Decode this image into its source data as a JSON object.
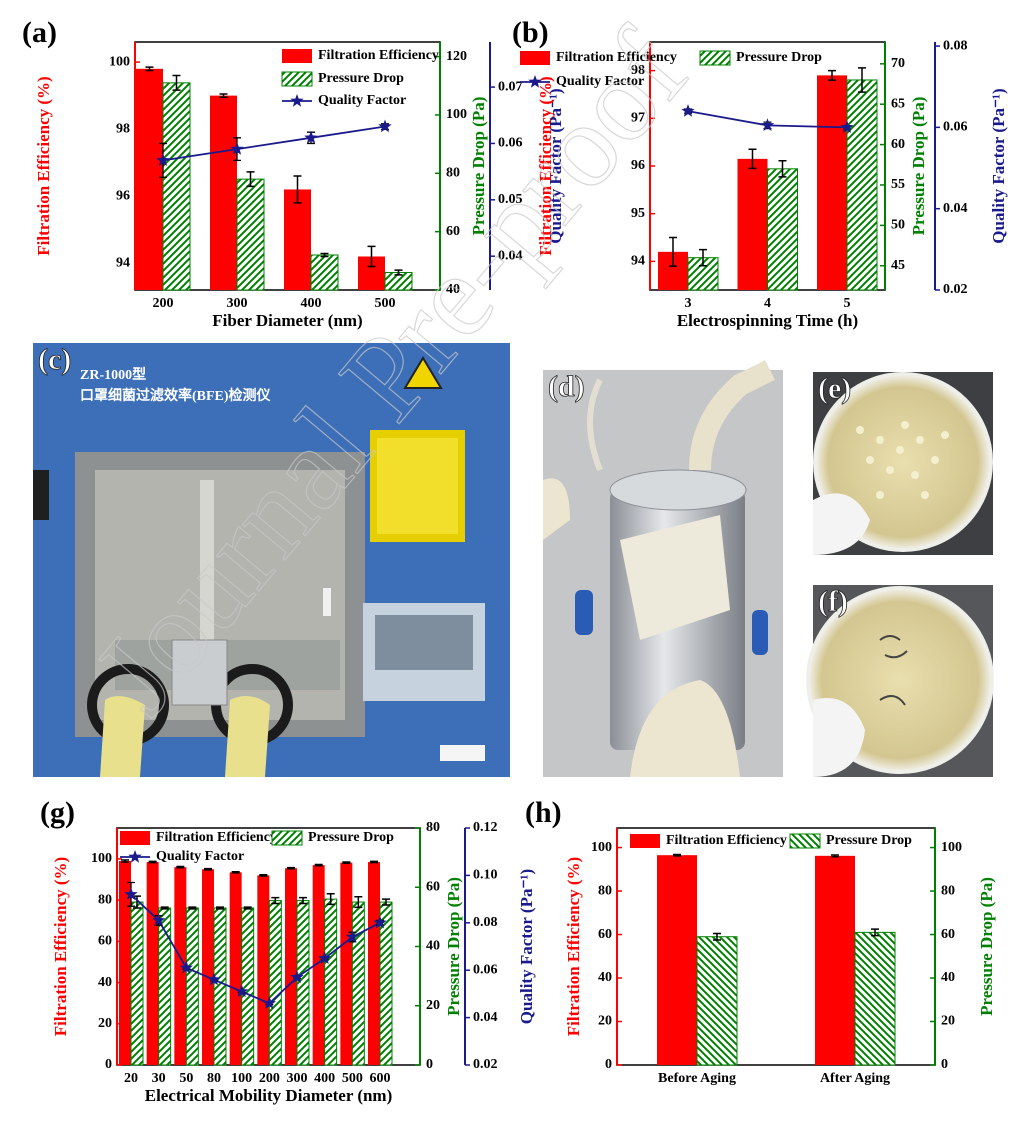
{
  "chart_data": [
    {
      "type": "bar_line",
      "label": "(a)",
      "xlabel": "Fiber Diameter (nm)",
      "ylabel": "Filtration Efficiency (%)",
      "y2label": "Pressure Drop (Pa)",
      "y3label": "Quality Factor (Pa⁻¹)",
      "categories": [
        "200",
        "300",
        "400",
        "500"
      ],
      "ylim": [
        93.2,
        100.6
      ],
      "yticks": [
        94,
        96,
        98,
        100
      ],
      "y2lim": [
        40,
        125
      ],
      "y2ticks": [
        40,
        60,
        80,
        100,
        120
      ],
      "y3lim": [
        0.034,
        0.078
      ],
      "y3ticks": [
        0.04,
        0.05,
        0.06,
        0.07
      ],
      "series": [
        {
          "name": "Filtration Efficiency",
          "type": "bar",
          "color": "#ff0000",
          "values": [
            99.8,
            99.0,
            96.2,
            94.2
          ],
          "errors": [
            0.05,
            0.05,
            0.4,
            0.3
          ]
        },
        {
          "name": "Pressure Drop",
          "type": "bar",
          "hatch": "/",
          "color": "#008000",
          "axis": "y2",
          "values": [
            111,
            78,
            52,
            46
          ],
          "errors": [
            2.5,
            2.5,
            0.5,
            0.8
          ]
        },
        {
          "name": "Quality Factor",
          "type": "line",
          "marker": "star",
          "color": "#1a1a8c",
          "axis": "y3",
          "values": [
            0.057,
            0.059,
            0.061,
            0.063
          ],
          "errors": [
            0.003,
            0.002,
            0.001,
            0.0005
          ]
        }
      ]
    },
    {
      "type": "bar_line",
      "label": "(b)",
      "xlabel": "Electrospinning Time (h)",
      "ylabel": "Filtration Efficiency (%)",
      "y2label": "Pressure Drop (Pa)",
      "y3label": "Quality Factor (Pa⁻¹)",
      "categories": [
        "3",
        "4",
        "5"
      ],
      "ylim": [
        93.4,
        98.6
      ],
      "yticks": [
        94,
        95,
        96,
        97,
        98
      ],
      "y2lim": [
        42,
        72.7
      ],
      "y2ticks": [
        45,
        50,
        55,
        60,
        65,
        70
      ],
      "y3lim": [
        0.02,
        0.081
      ],
      "y3ticks": [
        0.02,
        0.04,
        0.06,
        0.08
      ],
      "series": [
        {
          "name": "Filtration Efficiency",
          "type": "bar",
          "color": "#ff0000",
          "values": [
            94.2,
            96.15,
            97.9
          ],
          "errors": [
            0.3,
            0.2,
            0.1
          ]
        },
        {
          "name": "Pressure Drop",
          "type": "bar",
          "hatch": "/",
          "color": "#008000",
          "axis": "y2",
          "values": [
            46,
            57,
            68
          ],
          "errors": [
            1,
            1,
            1.5
          ]
        },
        {
          "name": "Quality Factor",
          "type": "line",
          "marker": "star",
          "color": "#1a1a8c",
          "axis": "y3",
          "values": [
            0.064,
            0.0605,
            0.06
          ],
          "errors": [
            0.0005,
            0.0008,
            0.0004
          ]
        }
      ]
    },
    {
      "type": "bar_line",
      "label": "(g)",
      "xlabel": "Electrical Mobility Diameter (nm)",
      "ylabel": "Filtration Efficiency (%)",
      "y2label": "Pressure Drop (Pa)",
      "y3label": "Quality Factor (Pa⁻¹)",
      "categories": [
        "20",
        "30",
        "50",
        "80",
        "100",
        "200",
        "300",
        "400",
        "500",
        "600"
      ],
      "ylim": [
        0,
        115
      ],
      "yticks": [
        0,
        20,
        40,
        60,
        80,
        100
      ],
      "y2lim": [
        0,
        80
      ],
      "y2ticks": [
        0,
        20,
        40,
        60,
        80
      ],
      "y3lim": [
        0.02,
        0.12
      ],
      "y3ticks": [
        0.02,
        0.04,
        0.06,
        0.08,
        {
          "value": 0.1,
          "label": "0.10"
        },
        0.12
      ],
      "series": [
        {
          "name": "Filtration Efficiency",
          "type": "bar",
          "color": "#ff0000",
          "values": [
            99,
            98.5,
            96,
            95,
            93.5,
            92,
            95.5,
            97,
            98.2,
            98.5
          ],
          "errors": [
            0.5,
            0.3,
            0.3,
            0.3,
            0.3,
            0.3,
            0.3,
            0.3,
            0.3,
            0.3
          ]
        },
        {
          "name": "Pressure Drop",
          "type": "bar",
          "hatch": "/",
          "color": "#008000",
          "axis": "y2",
          "values": [
            55,
            53,
            53,
            53,
            53,
            55.5,
            55.5,
            56,
            55,
            55
          ],
          "errors": [
            2,
            0.3,
            0.3,
            0.3,
            0.3,
            1,
            1,
            1.8,
            1.8,
            1
          ]
        },
        {
          "name": "Quality Factor",
          "type": "line",
          "marker": "star",
          "color": "#1a1a8c",
          "axis": "y3",
          "values": [
            0.092,
            0.081,
            0.061,
            0.056,
            0.051,
            0.046,
            0.057,
            0.065,
            0.074,
            0.08
          ],
          "errors": [
            0.005,
            0.002,
            0.0005,
            0.0005,
            0.0005,
            0.0005,
            0.0005,
            0.0005,
            0.002,
            0.001
          ]
        }
      ]
    },
    {
      "type": "bar_line",
      "label": "(h)",
      "ylabel": "Filtration Efficiency (%)",
      "y2label": "Pressure Drop (Pa)",
      "categories": [
        "Before Aging",
        "After Aging"
      ],
      "ylim": [
        0,
        109
      ],
      "yticks": [
        0,
        20,
        40,
        60,
        80,
        100
      ],
      "y2lim": [
        0,
        109
      ],
      "y2ticks": [
        0,
        20,
        40,
        60,
        80,
        100
      ],
      "series": [
        {
          "name": "Filtration Efficiency",
          "type": "bar",
          "color": "#ff0000",
          "values": [
            96.5,
            96.2
          ],
          "errors": [
            0.3,
            0.4
          ]
        },
        {
          "name": "Pressure Drop",
          "type": "bar",
          "hatch": "\\",
          "color": "#008000",
          "axis": "y2",
          "values": [
            59,
            61
          ],
          "errors": [
            1.5,
            1.5
          ]
        }
      ]
    }
  ],
  "photos": [
    {
      "label": "(c)",
      "text": [
        "ZR-1000型",
        "口罩细菌过滤效率(BFE)检测仪"
      ]
    },
    {
      "label": "(d)"
    },
    {
      "label": "(e)"
    },
    {
      "label": "(f)"
    }
  ],
  "watermark": "Journal Pre-proof"
}
